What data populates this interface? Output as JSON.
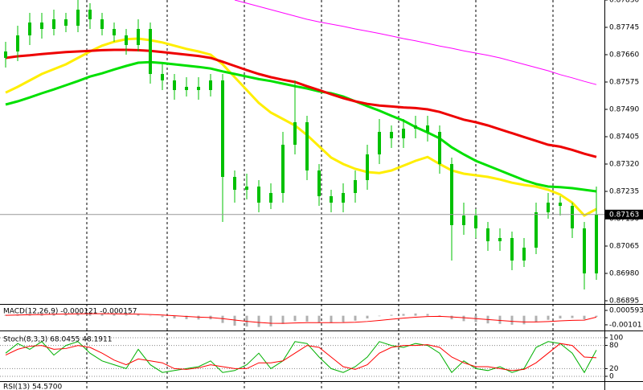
{
  "chart_data": [
    {
      "type": "candlestick",
      "color": "#00c000",
      "open": [
        0.8765,
        0.8767,
        0.8772,
        0.8776,
        0.8774,
        0.8777,
        0.8775,
        0.878,
        0.8777,
        0.8774,
        0.8772,
        0.8769,
        0.8774,
        0.876,
        0.8758,
        0.8755,
        0.8756,
        0.8755,
        0.8758,
        0.8728,
        0.8724,
        0.8725,
        0.872,
        0.8723,
        0.8738,
        0.8745,
        0.873,
        0.8722,
        0.872,
        0.8723,
        0.8727,
        0.8735,
        0.8742,
        0.874,
        0.8743,
        0.8744,
        0.8742,
        0.8732,
        0.8713,
        0.8716,
        0.8712,
        0.8708,
        0.8709,
        0.8702,
        0.8706,
        0.8717,
        0.872,
        0.8719,
        0.8712,
        0.8698
      ],
      "high": [
        0.877,
        0.8775,
        0.8779,
        0.8779,
        0.878,
        0.8779,
        0.8783,
        0.8782,
        0.8779,
        0.8776,
        0.8774,
        0.8777,
        0.8776,
        0.8763,
        0.876,
        0.8759,
        0.8759,
        0.876,
        0.876,
        0.873,
        0.8729,
        0.8727,
        0.8726,
        0.8742,
        0.8758,
        0.8747,
        0.8732,
        0.8724,
        0.8726,
        0.873,
        0.8738,
        0.8746,
        0.8744,
        0.8746,
        0.8747,
        0.8747,
        0.8744,
        0.8734,
        0.872,
        0.8718,
        0.8714,
        0.8712,
        0.8711,
        0.8709,
        0.872,
        0.8723,
        0.8722,
        0.872,
        0.8714,
        0.8725
      ],
      "low": [
        0.8762,
        0.8764,
        0.8769,
        0.8771,
        0.8772,
        0.8773,
        0.8773,
        0.8774,
        0.8772,
        0.877,
        0.8766,
        0.8767,
        0.8757,
        0.8755,
        0.8752,
        0.8753,
        0.8752,
        0.8753,
        0.8714,
        0.872,
        0.8721,
        0.8717,
        0.8718,
        0.872,
        0.8735,
        0.8727,
        0.8719,
        0.8717,
        0.8717,
        0.872,
        0.8724,
        0.8732,
        0.8737,
        0.8737,
        0.874,
        0.8739,
        0.8729,
        0.8702,
        0.871,
        0.8709,
        0.8705,
        0.8705,
        0.8699,
        0.87,
        0.8704,
        0.8715,
        0.8716,
        0.8709,
        0.8693,
        0.8696
      ],
      "close": [
        0.8767,
        0.8772,
        0.8776,
        0.8774,
        0.8777,
        0.8775,
        0.878,
        0.8777,
        0.8774,
        0.8772,
        0.8769,
        0.8774,
        0.876,
        0.8758,
        0.8755,
        0.8756,
        0.8755,
        0.8758,
        0.8728,
        0.8724,
        0.8725,
        0.872,
        0.8723,
        0.8738,
        0.8745,
        0.873,
        0.8722,
        0.872,
        0.8723,
        0.8727,
        0.8735,
        0.8742,
        0.874,
        0.8743,
        0.8744,
        0.8742,
        0.8732,
        0.8713,
        0.8716,
        0.8712,
        0.8708,
        0.8709,
        0.8702,
        0.8706,
        0.8717,
        0.872,
        0.8719,
        0.8712,
        0.8698,
        0.87163
      ],
      "series": [
        {
          "color": "#ff00ff",
          "values": [
            null,
            null,
            null,
            null,
            null,
            null,
            null,
            null,
            null,
            null,
            null,
            null,
            null,
            null,
            null,
            null,
            null,
            null,
            null,
            0.8783,
            0.8782,
            0.8781,
            0.878,
            0.8779,
            0.8778,
            0.8777,
            0.87762,
            0.87755,
            0.87748,
            0.8774,
            0.87733,
            0.87726,
            0.87718,
            0.8771,
            0.87703,
            0.87695,
            0.87687,
            0.8768,
            0.87672,
            0.87665,
            0.87658,
            0.8765,
            0.8764,
            0.8763,
            0.8762,
            0.8761,
            0.87598,
            0.87588,
            0.87577,
            0.87567
          ]
        },
        {
          "color": "#ffee00",
          "values": [
            0.87542,
            0.8756,
            0.8758,
            0.876,
            0.87615,
            0.8763,
            0.8765,
            0.8767,
            0.87688,
            0.877,
            0.87708,
            0.8771,
            0.87705,
            0.87698,
            0.87688,
            0.87678,
            0.8767,
            0.8766,
            0.8763,
            0.8759,
            0.8755,
            0.8751,
            0.8748,
            0.8746,
            0.8744,
            0.8741,
            0.87375,
            0.8734,
            0.8732,
            0.87305,
            0.87295,
            0.87292,
            0.873,
            0.87315,
            0.8733,
            0.87342,
            0.8732,
            0.873,
            0.8729,
            0.87285,
            0.8728,
            0.87272,
            0.87262,
            0.87255,
            0.8725,
            0.8724,
            0.87225,
            0.872,
            0.8716,
            0.8718
          ]
        },
        {
          "color": "#00e000",
          "values": [
            0.87505,
            0.87515,
            0.87527,
            0.8754,
            0.87552,
            0.87565,
            0.87578,
            0.87592,
            0.87602,
            0.87614,
            0.87625,
            0.87635,
            0.87637,
            0.87634,
            0.8763,
            0.87626,
            0.87622,
            0.87617,
            0.87608,
            0.876,
            0.87592,
            0.87584,
            0.87578,
            0.8757,
            0.87562,
            0.87555,
            0.87546,
            0.8754,
            0.8753,
            0.87515,
            0.875,
            0.87486,
            0.8747,
            0.87455,
            0.87435,
            0.87418,
            0.874,
            0.87372,
            0.8735,
            0.8733,
            0.87315,
            0.873,
            0.87285,
            0.8727,
            0.87258,
            0.8725,
            0.87248,
            0.87245,
            0.8724,
            0.87235
          ]
        },
        {
          "color": "#ee0000",
          "values": [
            0.8765,
            0.87655,
            0.87658,
            0.87662,
            0.87665,
            0.87668,
            0.8767,
            0.87672,
            0.87674,
            0.87675,
            0.87675,
            0.87674,
            0.87672,
            0.87668,
            0.87664,
            0.8766,
            0.87656,
            0.8765,
            0.87638,
            0.87625,
            0.87612,
            0.876,
            0.8759,
            0.87582,
            0.87575,
            0.87562,
            0.8755,
            0.87537,
            0.87525,
            0.87515,
            0.87507,
            0.87502,
            0.87499,
            0.87496,
            0.87494,
            0.8749,
            0.87482,
            0.8747,
            0.87458,
            0.8745,
            0.8744,
            0.87428,
            0.87416,
            0.87404,
            0.87392,
            0.8738,
            0.87374,
            0.87364,
            0.87352,
            0.87342
          ]
        }
      ],
      "last_price": 0.87163,
      "ylim": [
        0.86885,
        0.8783
      ],
      "yticks": [
        {
          "value": 0.8783,
          "label": "0.87830"
        },
        {
          "value": 0.87745,
          "label": "0.87745"
        },
        {
          "value": 0.8766,
          "label": "0.87660"
        },
        {
          "value": 0.87575,
          "label": "0.87575"
        },
        {
          "value": 0.8749,
          "label": "0.87490"
        },
        {
          "value": 0.87405,
          "label": "0.87405"
        },
        {
          "value": 0.8732,
          "label": "0.87320"
        },
        {
          "value": 0.87235,
          "label": "0.87235"
        },
        {
          "value": 0.8715,
          "label": "0.87150"
        },
        {
          "value": 0.87065,
          "label": "0.87065"
        },
        {
          "value": 0.8698,
          "label": "0.86980"
        },
        {
          "value": 0.86895,
          "label": "0.86895"
        }
      ],
      "grid": false
    },
    {
      "type": "bar",
      "title": "MACD(12,26,9) -0.000121 -0.000157",
      "color": "#b0b0b0",
      "values": [
        0.0001,
        0.00015,
        0.0002,
        0.00022,
        0.00025,
        0.00024,
        0.00028,
        0.00026,
        0.00022,
        0.00018,
        0.00012,
        0.00015,
        0.0,
        -0.00015,
        -0.0003,
        -0.00038,
        -0.00042,
        -0.0004,
        -0.0008,
        -0.0011,
        -0.0012,
        -0.00125,
        -0.00118,
        -0.0009,
        -0.0006,
        -0.00065,
        -0.00075,
        -0.0008,
        -0.0007,
        -0.00055,
        -0.0003,
        -5e-05,
        0.0001,
        0.0002,
        0.00025,
        0.0002,
        5e-05,
        -0.0004,
        -0.0006,
        -0.0007,
        -0.00085,
        -0.0009,
        -0.001,
        -0.00095,
        -0.0007,
        -0.00045,
        -0.0003,
        -0.00025,
        -0.0004,
        -0.000121
      ],
      "series": [
        {
          "color": "#ff0000",
          "values": [
            5e-05,
            8e-05,
            0.00011,
            0.00014,
            0.00017,
            0.00019,
            0.00021,
            0.00022,
            0.00022,
            0.00021,
            0.00019,
            0.00018,
            0.00014,
            8e-05,
            0.0,
            -8e-05,
            -0.00015,
            -0.0002,
            -0.00032,
            -0.00048,
            -0.00062,
            -0.00075,
            -0.00084,
            -0.00085,
            -0.0008,
            -0.00077,
            -0.00077,
            -0.00077,
            -0.00076,
            -0.00072,
            -0.00064,
            -0.00052,
            -0.00039,
            -0.00027,
            -0.00016,
            -9e-05,
            -6e-05,
            -0.00013,
            -0.00022,
            -0.00032,
            -0.00042,
            -0.00052,
            -0.00062,
            -0.00069,
            -0.00069,
            -0.00064,
            -0.00057,
            -0.00051,
            -0.00049,
            -0.000157
          ]
        }
      ],
      "ylim": [
        -0.00155,
        0.00113
      ],
      "yticks": [
        0.000593,
        -0.00101
      ],
      "grid": false
    },
    {
      "type": "line",
      "title": "Stoch(8,3,3) 68.0455 48.1911",
      "series": [
        {
          "color": "#00b000",
          "values": [
            60,
            85,
            70,
            90,
            55,
            80,
            90,
            60,
            40,
            30,
            20,
            70,
            30,
            10,
            15,
            20,
            25,
            40,
            10,
            15,
            30,
            60,
            20,
            40,
            90,
            85,
            50,
            20,
            10,
            25,
            50,
            90,
            80,
            75,
            85,
            80,
            60,
            10,
            40,
            20,
            15,
            25,
            10,
            20,
            75,
            90,
            85,
            60,
            10,
            68.0455
          ]
        },
        {
          "color": "#ff0000",
          "values": [
            55,
            70,
            78,
            80,
            70,
            72,
            80,
            75,
            60,
            42,
            30,
            45,
            40,
            35,
            20,
            18,
            22,
            30,
            25,
            20,
            20,
            35,
            35,
            40,
            60,
            80,
            75,
            50,
            25,
            18,
            30,
            60,
            75,
            80,
            80,
            82,
            75,
            50,
            35,
            25,
            25,
            20,
            15,
            18,
            35,
            60,
            85,
            80,
            50,
            48.1911
          ]
        }
      ],
      "ylim": [
        0,
        100
      ],
      "yticks": [
        100,
        80,
        20,
        0
      ],
      "grid": true
    },
    {
      "type": "line",
      "title": "RSI(13) 54.5700"
    }
  ]
}
